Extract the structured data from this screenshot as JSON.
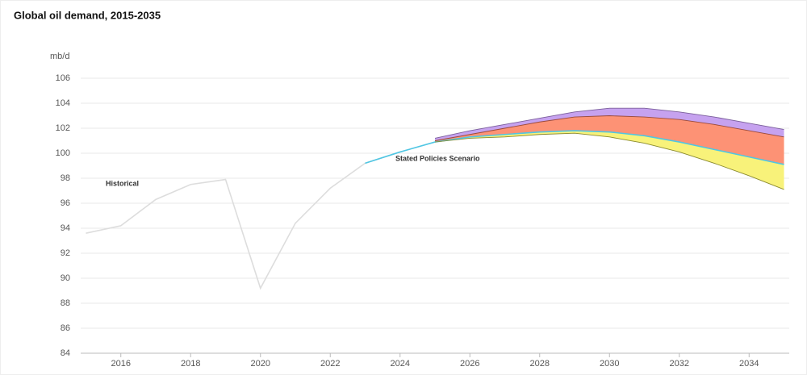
{
  "chart_data": {
    "type": "line",
    "title": "Global oil demand, 2015-2035",
    "y_label": "mb/d",
    "xlim": [
      2014.85,
      2035.15
    ],
    "xticks": [
      2016,
      2018,
      2020,
      2022,
      2024,
      2026,
      2028,
      2030,
      2032,
      2034
    ],
    "ylim": [
      84,
      106
    ],
    "yticks": [
      84,
      86,
      88,
      90,
      92,
      94,
      96,
      98,
      100,
      102,
      104,
      106
    ],
    "grid": true,
    "series": [
      {
        "name": "Historical",
        "color": "#dddddd",
        "x": [
          2015,
          2016,
          2017,
          2018,
          2019,
          2020,
          2021,
          2022,
          2023,
          2024
        ],
        "values": [
          93.6,
          94.2,
          96.3,
          97.5,
          97.9,
          89.2,
          94.4,
          97.2,
          99.2,
          100.1
        ]
      },
      {
        "color": "#7b5f9c",
        "fill": "#c6a2ef",
        "x": [
          2025,
          2026,
          2027,
          2028,
          2029,
          2030,
          2031,
          2032,
          2033,
          2034,
          2035
        ],
        "values": [
          101.2,
          101.8,
          102.3,
          102.8,
          103.3,
          103.6,
          103.6,
          103.3,
          102.9,
          102.4,
          101.9
        ]
      },
      {
        "color": "#9b4a3a",
        "fill": "#fd9275",
        "x": [
          2025,
          2026,
          2027,
          2028,
          2029,
          2030,
          2031,
          2032,
          2033,
          2034,
          2035
        ],
        "values": [
          101.0,
          101.5,
          102.0,
          102.5,
          102.9,
          103.0,
          102.9,
          102.7,
          102.3,
          101.8,
          101.3
        ]
      },
      {
        "name": "Stated Policies Scenario",
        "color": "#4fc6e3",
        "fill": "#f8f27a",
        "x": [
          2023,
          2024,
          2025,
          2026,
          2027,
          2028,
          2029,
          2030,
          2031,
          2032,
          2033,
          2034,
          2035
        ],
        "values": [
          99.2,
          100.1,
          100.9,
          101.3,
          101.5,
          101.7,
          101.8,
          101.7,
          101.4,
          100.9,
          100.3,
          99.7,
          99.1
        ]
      },
      {
        "color": "#8a8a2e",
        "x": [
          2025,
          2026,
          2027,
          2028,
          2029,
          2030,
          2031,
          2032,
          2033,
          2034,
          2035
        ],
        "values": [
          100.9,
          101.2,
          101.3,
          101.5,
          101.6,
          101.3,
          100.8,
          100.1,
          99.2,
          98.2,
          97.1
        ]
      }
    ]
  }
}
